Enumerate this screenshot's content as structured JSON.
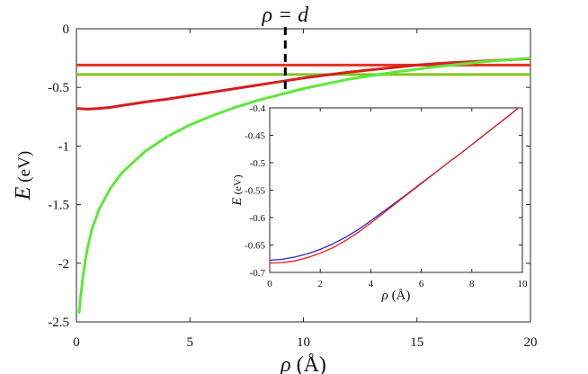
{
  "chart_data": [
    {
      "type": "line",
      "title": "",
      "annotation": {
        "text": "ρ = d",
        "x": 9.2,
        "style": "dashed",
        "color": "#000000"
      },
      "xlabel": {
        "var": "ρ",
        "unit": "(Å)"
      },
      "ylabel": {
        "var": "E",
        "unit": "(eV)"
      },
      "xlim": [
        0,
        20
      ],
      "ylim": [
        -2.5,
        0
      ],
      "xticks": [
        0,
        5,
        10,
        15,
        20
      ],
      "yticks": [
        0,
        -0.5,
        -1,
        -1.5,
        -2,
        -2.5
      ],
      "xtick_labels": [
        "0",
        "5",
        "10",
        "15",
        "20"
      ],
      "ytick_labels": [
        "0",
        "-0.5",
        "-1",
        "-1.5",
        "-2",
        "-2.5"
      ],
      "grid": false,
      "series": [
        {
          "color": "#e8321e",
          "x": [
            0,
            20
          ],
          "y": [
            -0.31,
            -0.31
          ]
        },
        {
          "color": "#85c41a",
          "x": [
            0,
            20
          ],
          "y": [
            -0.39,
            -0.39
          ]
        },
        {
          "color": "#d81e1e",
          "x": [
            0,
            0.5,
            1,
            1.5,
            2,
            2.5,
            3,
            4,
            5,
            6,
            7,
            8,
            9,
            10,
            11,
            12,
            13,
            14,
            15,
            16,
            17,
            18,
            19,
            20
          ],
          "y": [
            -0.68,
            -0.685,
            -0.68,
            -0.67,
            -0.655,
            -0.64,
            -0.625,
            -0.6,
            -0.57,
            -0.54,
            -0.51,
            -0.48,
            -0.45,
            -0.42,
            -0.395,
            -0.37,
            -0.35,
            -0.33,
            -0.31,
            -0.295,
            -0.285,
            -0.275,
            -0.265,
            -0.255
          ]
        },
        {
          "color": "#5ee83a",
          "x": [
            0.12,
            0.2,
            0.3,
            0.4,
            0.5,
            0.7,
            1,
            1.5,
            2,
            3,
            4,
            5,
            6,
            7,
            8,
            9,
            10,
            11,
            12,
            13,
            14,
            15,
            16,
            17,
            18,
            19,
            20
          ],
          "y": [
            -2.42,
            -2.26,
            -2.1,
            -1.97,
            -1.86,
            -1.7,
            -1.54,
            -1.36,
            -1.23,
            -1.05,
            -0.92,
            -0.82,
            -0.74,
            -0.67,
            -0.61,
            -0.56,
            -0.51,
            -0.47,
            -0.43,
            -0.4,
            -0.37,
            -0.345,
            -0.32,
            -0.3,
            -0.28,
            -0.265,
            -0.25
          ]
        }
      ]
    },
    {
      "type": "line",
      "title": "",
      "xlabel": {
        "var": "ρ",
        "unit": "(Å)"
      },
      "ylabel": {
        "var": "E",
        "unit": "(eV)"
      },
      "xlim": [
        0,
        10
      ],
      "ylim": [
        -0.7,
        -0.4
      ],
      "xticks": [
        0,
        2,
        4,
        6,
        8,
        10
      ],
      "yticks": [
        -0.4,
        -0.45,
        -0.5,
        -0.55,
        -0.6,
        -0.65,
        -0.7
      ],
      "xtick_labels": [
        "0",
        "2",
        "4",
        "6",
        "8",
        "10"
      ],
      "ytick_labels": [
        "-0.4",
        "-0.45",
        "-0.5",
        "-0.55",
        "-0.6",
        "-0.65",
        "-0.7"
      ],
      "grid": false,
      "series": [
        {
          "color": "#2a2ad4",
          "x": [
            0,
            0.5,
            1,
            1.5,
            2,
            2.5,
            3,
            3.5,
            4,
            4.5,
            5,
            5.5,
            6,
            6.5,
            7,
            7.5,
            8,
            8.5,
            9,
            9.5,
            10
          ],
          "y": [
            -0.678,
            -0.676,
            -0.672,
            -0.666,
            -0.658,
            -0.648,
            -0.636,
            -0.622,
            -0.606,
            -0.589,
            -0.572,
            -0.555,
            -0.537,
            -0.52,
            -0.502,
            -0.485,
            -0.467,
            -0.449,
            -0.431,
            -0.413,
            -0.394
          ]
        },
        {
          "color": "#e01e1e",
          "x": [
            0,
            0.5,
            1,
            1.5,
            2,
            2.5,
            3,
            3.5,
            4,
            4.5,
            5,
            5.5,
            6,
            6.5,
            7,
            7.5,
            8,
            8.5,
            9,
            9.5,
            10
          ],
          "y": [
            -0.683,
            -0.682,
            -0.679,
            -0.673,
            -0.665,
            -0.655,
            -0.642,
            -0.627,
            -0.61,
            -0.592,
            -0.574,
            -0.556,
            -0.538,
            -0.52,
            -0.502,
            -0.485,
            -0.467,
            -0.449,
            -0.431,
            -0.413,
            -0.394
          ]
        }
      ]
    }
  ]
}
